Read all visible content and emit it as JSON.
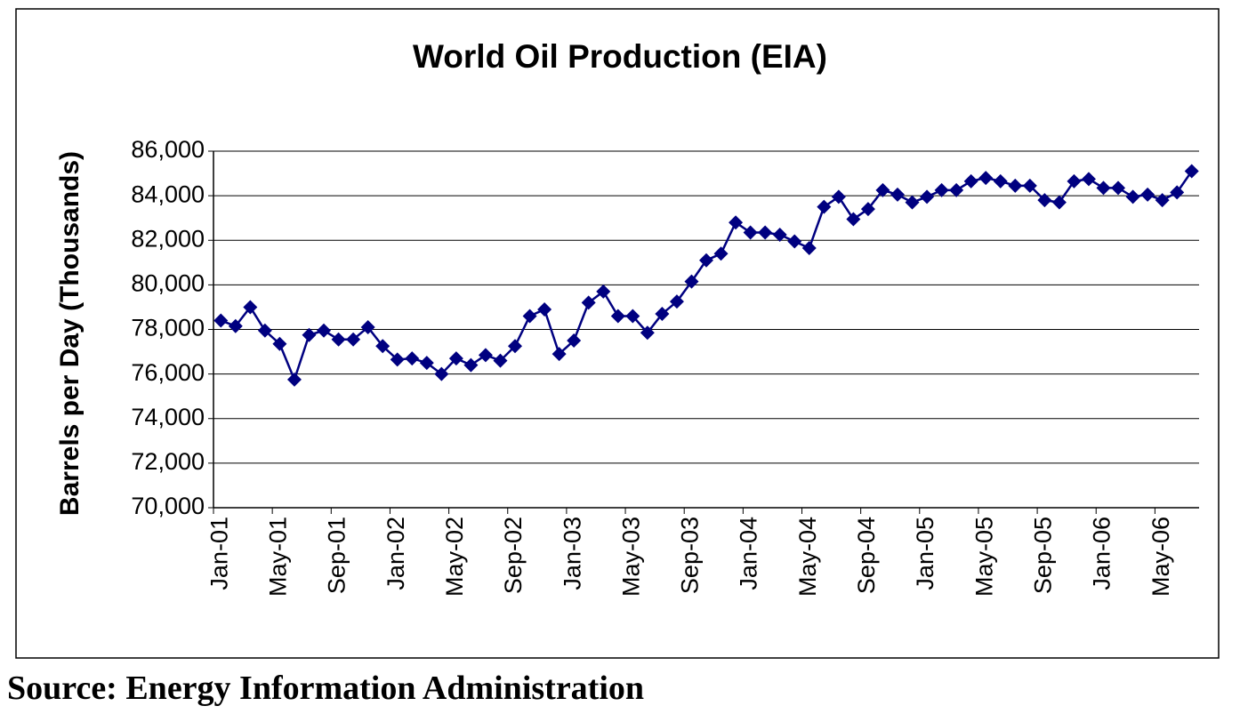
{
  "chart_data": {
    "type": "line",
    "title": "World Oil Production (EIA)",
    "y_label": "Barrels per Day (Thousands)",
    "source": "Source: Energy Information Administration",
    "categories": [
      "Jan-01",
      null,
      null,
      null,
      "May-01",
      null,
      null,
      null,
      "Sep-01",
      null,
      null,
      null,
      "Jan-02",
      null,
      null,
      null,
      "May-02",
      null,
      null,
      null,
      "Sep-02",
      null,
      null,
      null,
      "Jan-03",
      null,
      null,
      null,
      "May-03",
      null,
      null,
      null,
      "Sep-03",
      null,
      null,
      null,
      "Jan-04",
      null,
      null,
      null,
      "May-04",
      null,
      null,
      null,
      "Sep-04",
      null,
      null,
      null,
      "Jan-05",
      null,
      null,
      null,
      "May-05",
      null,
      null,
      null,
      "Sep-05",
      null,
      null,
      null,
      "Jan-06",
      null,
      null,
      null,
      "May-06",
      null,
      null
    ],
    "series": [
      {
        "name": "World Oil Production",
        "color": "#000080",
        "values": [
          78400,
          78150,
          79000,
          77950,
          77350,
          75750,
          77750,
          77950,
          77550,
          77550,
          78100,
          77250,
          76650,
          76700,
          76500,
          76000,
          76700,
          76400,
          76850,
          76600,
          77250,
          78600,
          78900,
          76900,
          77500,
          79200,
          79700,
          78600,
          78600,
          77850,
          78700,
          79250,
          80150,
          81100,
          81400,
          82800,
          82350,
          82350,
          82250,
          81950,
          81650,
          83500,
          83950,
          82950,
          83400,
          84250,
          84050,
          83700,
          83950,
          84250,
          84250,
          84650,
          84800,
          84650,
          84450,
          84450,
          83800,
          83700,
          84650,
          84750,
          84350,
          84350,
          83950,
          84050,
          83800,
          84150,
          85100
        ]
      }
    ],
    "ylim": [
      70000,
      86000
    ],
    "yticks": [
      {
        "value": 70000,
        "label": "70,000"
      },
      {
        "value": 72000,
        "label": "72,000"
      },
      {
        "value": 74000,
        "label": "74,000"
      },
      {
        "value": 76000,
        "label": "76,000"
      },
      {
        "value": 78000,
        "label": "78,000"
      },
      {
        "value": 80000,
        "label": "80,000"
      },
      {
        "value": 82000,
        "label": "82,000"
      },
      {
        "value": 84000,
        "label": "84,000"
      },
      {
        "value": 86000,
        "label": "86,000"
      }
    ],
    "grid": true
  }
}
